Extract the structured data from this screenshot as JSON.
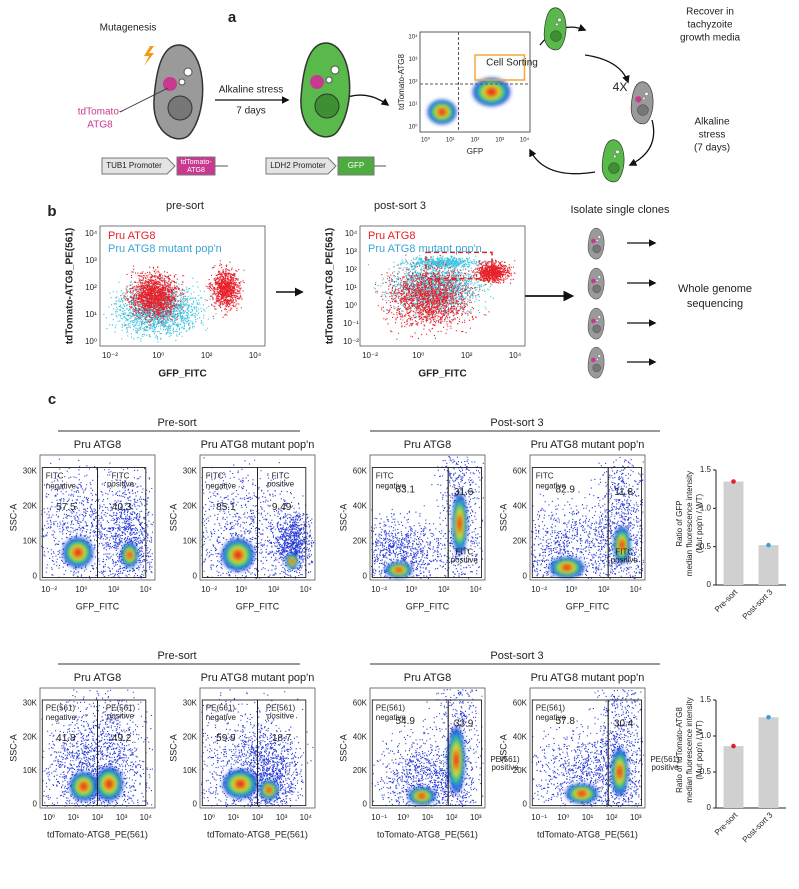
{
  "panel_a": {
    "label": "a",
    "mutagenesis": "Mutagenesis",
    "reporter": [
      "tdTomato-",
      "ATG8"
    ],
    "stress": "Alkaline stress",
    "stress_time": "7 days",
    "tub1": "TUB1 Promoter",
    "tub1_gene": [
      "tdTomato-",
      "ATG8"
    ],
    "ldh2": "LDH2 Promoter",
    "ldh2_gene": "GFP",
    "sorting": "Cell Sorting",
    "plot_y": "tdTomato-ATG8",
    "plot_x": "GFP",
    "ticks": [
      "10⁰",
      "10¹",
      "10²",
      "10³",
      "10⁴"
    ],
    "cycles": "4X",
    "recover": [
      "Recover in",
      "tachyzoite",
      "growth media"
    ],
    "stress2": [
      "Alkaline",
      "stress",
      "(7 days)"
    ]
  },
  "panel_b": {
    "label": "b",
    "plots": [
      {
        "title": "pre-sort",
        "yticks": [
          "10⁰",
          "10¹",
          "10²",
          "10³",
          "10⁴"
        ],
        "xticks": [
          "10⁻²",
          "10⁰",
          "10²",
          "10⁴"
        ]
      },
      {
        "title": "post-sort 3",
        "yticks": [
          "10⁻²",
          "10⁻¹",
          "10⁰",
          "10¹",
          "10²",
          "10³",
          "10⁴"
        ],
        "xticks": [
          "10⁻²",
          "10⁰",
          "10²",
          "10⁴"
        ]
      }
    ],
    "legend": [
      {
        "name": "Pru ATG8",
        "color": "#e8202a"
      },
      {
        "name": "Pru ATG8 mutant pop'n",
        "color": "#3aa6d6"
      }
    ],
    "y_axis": "tdTomato-ATG8_PE(561)",
    "x_axis": "GFP_FITC",
    "isolate": "Isolate single clones",
    "wgs": [
      "Whole genome",
      "sequencing"
    ]
  },
  "panel_c": {
    "label": "c",
    "rows": [
      {
        "headers": [
          "Pre-sort",
          "Post-sort 3"
        ],
        "y_axis": "SSC-A",
        "plots": [
          {
            "title": "Pru ATG8",
            "x_axis": "GFP_FITC",
            "gate_left": [
              "FITC",
              "negative"
            ],
            "gate_right": [
              "FITC",
              "positive"
            ],
            "left": 57.5,
            "right": 40.3,
            "yticks": [
              "0",
              "10K",
              "20K",
              "30K"
            ],
            "xticks": [
              "10⁻²",
              "10⁰",
              "10²",
              "10⁴"
            ]
          },
          {
            "title": "Pru ATG8 mutant pop'n",
            "x_axis": "GFP_FITC",
            "gate_left": [
              "FITC",
              "negative"
            ],
            "gate_right": [
              "FITC",
              "positive"
            ],
            "left": 85.1,
            "right": 9.49,
            "yticks": [
              "0",
              "10K",
              "20K",
              "30K"
            ],
            "xticks": [
              "10⁻²",
              "10⁰",
              "10²",
              "10⁴"
            ]
          },
          {
            "title": "Pru ATG8",
            "x_axis": "GFP_FITC",
            "gate_left": [
              "FITC",
              "negative"
            ],
            "gate_right": [
              "FITC",
              "positive"
            ],
            "left": 63.1,
            "right": 31.6,
            "yticks": [
              "0",
              "20K",
              "40K",
              "60K"
            ],
            "xticks": [
              "10⁻²",
              "10⁰",
              "10²",
              "10⁴"
            ]
          },
          {
            "title": "Pru ATG8 mutant pop'n",
            "x_axis": "GFP_FITC",
            "gate_left": [
              "FITC",
              "negative"
            ],
            "gate_right": [
              "FITC",
              "positive"
            ],
            "left": 82.9,
            "right": 11.8,
            "yticks": [
              "0",
              "20K",
              "40K",
              "60K"
            ],
            "xticks": [
              "10⁻²",
              "10⁰",
              "10²",
              "10⁴"
            ]
          }
        ]
      },
      {
        "headers": [
          "Pre-sort",
          "Post-sort 3"
        ],
        "y_axis": "SSC-A",
        "plots": [
          {
            "title": "Pru ATG8",
            "x_axis": "tdTomato-ATG8_PE(561)",
            "gate_left": [
              "PE(561)",
              "negative"
            ],
            "gate_right": [
              "PE(561)",
              "positive"
            ],
            "left": 41.8,
            "right": 49.2,
            "yticks": [
              "0",
              "10K",
              "20K",
              "30K"
            ],
            "xticks": [
              "10⁰",
              "10¹",
              "10²",
              "10³",
              "10⁴"
            ]
          },
          {
            "title": "Pru ATG8 mutant pop'n",
            "x_axis": "tdTomato-ATG8_PE(561)",
            "gate_left": [
              "PE(561)",
              "negative"
            ],
            "gate_right": [
              "PE(561)",
              "positive"
            ],
            "left": 59.9,
            "right": 18.7,
            "yticks": [
              "0",
              "10K",
              "20K",
              "30K"
            ],
            "xticks": [
              "10⁰",
              "10¹",
              "10²",
              "10³",
              "10⁴"
            ]
          },
          {
            "title": "Pru ATG8",
            "x_axis": "toTomato-ATG8_PE(561)",
            "gate_left": [
              "PE(561)",
              "negative"
            ],
            "gate_right": [
              "PE(561)",
              "positive"
            ],
            "left": 54.9,
            "right": 33.9,
            "yticks": [
              "0",
              "20K",
              "40K",
              "60K"
            ],
            "xticks": [
              "10⁻¹",
              "10⁰",
              "10¹",
              "10²",
              "10³"
            ]
          },
          {
            "title": "Pru ATG8 mutant pop'n",
            "x_axis": "tdTomato-ATG8_PE(561)",
            "gate_left": [
              "PE(561)",
              "negative"
            ],
            "gate_right": [
              "PE(561)",
              "positive"
            ],
            "left": 57.8,
            "right": 30.4,
            "yticks": [
              "0",
              "20K",
              "40K",
              "60K"
            ],
            "xticks": [
              "10⁻¹",
              "10⁰",
              "10¹",
              "10²",
              "10³"
            ]
          }
        ]
      }
    ]
  },
  "chart_data": [
    {
      "type": "bar",
      "ylabel": [
        "Ratio of GFP",
        "median fluorescence intensity",
        "(Mut pop'n / WT)"
      ],
      "categories": [
        "Pre-sort",
        "Post-sort 3"
      ],
      "values": [
        1.35,
        0.52
      ],
      "color": "#d0d0d0",
      "point_colors": [
        "#e0202a",
        "#3aa0d8"
      ],
      "ylim": [
        0,
        1.5
      ],
      "yticks": [
        0,
        0.5,
        {
          "value": 1,
          "label": "1.0"
        },
        1.5
      ]
    },
    {
      "type": "bar",
      "ylabel": [
        "Ratio of tdTomato-ATG8",
        "median fluorescence intensity",
        "(Mut pop'n / WT)"
      ],
      "categories": [
        "Pre-sort",
        "Post-sort 3"
      ],
      "values": [
        0.86,
        1.26
      ],
      "color": "#d0d0d0",
      "point_colors": [
        "#e0202a",
        "#3aa0d8"
      ],
      "ylim": [
        0,
        1.5
      ],
      "yticks": [
        0,
        0.5,
        {
          "value": 1,
          "label": "1.0"
        },
        1.5
      ]
    }
  ]
}
